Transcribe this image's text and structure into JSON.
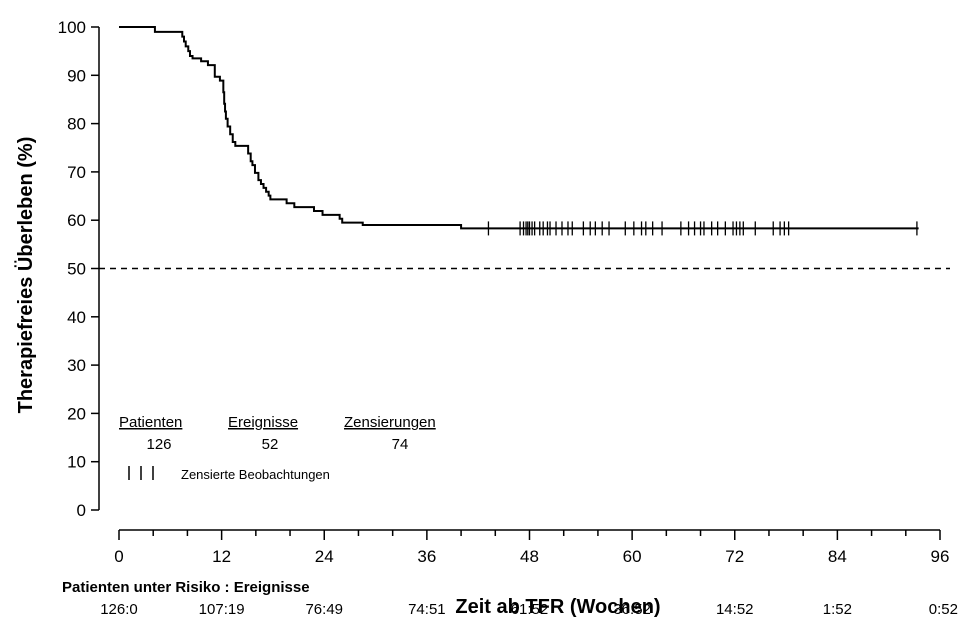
{
  "chart_data": {
    "type": "line",
    "subtype": "kaplan-meier",
    "ylabel": "Therapiefreies Überleben (%)",
    "xlabel": "Zeit ab TFR (Wochen)",
    "xlim": [
      0,
      96
    ],
    "ylim": [
      0,
      100
    ],
    "x_ticks": [
      0,
      12,
      24,
      36,
      48,
      60,
      72,
      84,
      96
    ],
    "y_ticks": [
      0,
      10,
      20,
      30,
      40,
      50,
      60,
      70,
      80,
      90,
      100
    ],
    "reference_line": {
      "y": 50,
      "style": "dashed"
    },
    "grid": false,
    "series": [
      {
        "steps": [
          [
            0,
            100
          ],
          [
            0.6,
            100
          ],
          [
            4.2,
            99
          ],
          [
            7.4,
            98
          ],
          [
            7.6,
            97
          ],
          [
            7.8,
            96
          ],
          [
            8.1,
            95
          ],
          [
            8.3,
            94
          ],
          [
            8.6,
            93.5
          ],
          [
            9.6,
            92.9
          ],
          [
            10.4,
            92.1
          ],
          [
            11.2,
            89.7
          ],
          [
            11.8,
            88.9
          ],
          [
            12.2,
            86.5
          ],
          [
            12.3,
            84.1
          ],
          [
            12.4,
            82.5
          ],
          [
            12.5,
            81
          ],
          [
            12.7,
            79.4
          ],
          [
            13.0,
            77.8
          ],
          [
            13.3,
            76.2
          ],
          [
            13.6,
            75.4
          ],
          [
            15.1,
            73.8
          ],
          [
            15.4,
            72.2
          ],
          [
            15.6,
            71.4
          ],
          [
            15.9,
            69.8
          ],
          [
            16.3,
            68.3
          ],
          [
            16.6,
            67.5
          ],
          [
            16.9,
            66.7
          ],
          [
            17.2,
            65.9
          ],
          [
            17.5,
            65.1
          ],
          [
            17.7,
            64.3
          ],
          [
            19.6,
            63.5
          ],
          [
            20.5,
            62.7
          ],
          [
            21.7,
            62.7
          ],
          [
            22.8,
            61.9
          ],
          [
            23.8,
            61.1
          ],
          [
            25.8,
            60.3
          ],
          [
            26.1,
            59.5
          ],
          [
            28.1,
            59.5
          ],
          [
            28.5,
            59
          ],
          [
            39.9,
            59
          ],
          [
            40.0,
            58.3
          ],
          [
            93.5,
            58.3
          ]
        ],
        "censored_x": [
          43.2,
          46.9,
          47.3,
          47.6,
          47.8,
          48.0,
          48.3,
          48.6,
          49.2,
          49.6,
          50.1,
          50.4,
          51.1,
          51.8,
          52.5,
          53.0,
          54.3,
          55.1,
          55.7,
          56.5,
          57.3,
          59.2,
          60.2,
          61.1,
          61.6,
          62.4,
          63.5,
          65.7,
          66.6,
          67.3,
          68.0,
          68.4,
          69.3,
          70.0,
          70.9,
          71.8,
          72.2,
          72.6,
          73.0,
          74.4,
          76.5,
          77.3,
          77.8,
          78.3,
          93.3
        ]
      }
    ],
    "legend": {
      "headers": [
        "Patienten",
        "Ereignisse",
        "Zensierungen"
      ],
      "values": [
        "126",
        "52",
        "74"
      ],
      "censor_label": "Zensierte Beobachtungen"
    },
    "risk_table": {
      "title": "Patienten unter Risiko : Ereignisse",
      "values": [
        "126:0",
        "107:19",
        "76:49",
        "74:51",
        "61:52",
        "36:52",
        "14:52",
        "1:52",
        "0:52"
      ]
    }
  }
}
